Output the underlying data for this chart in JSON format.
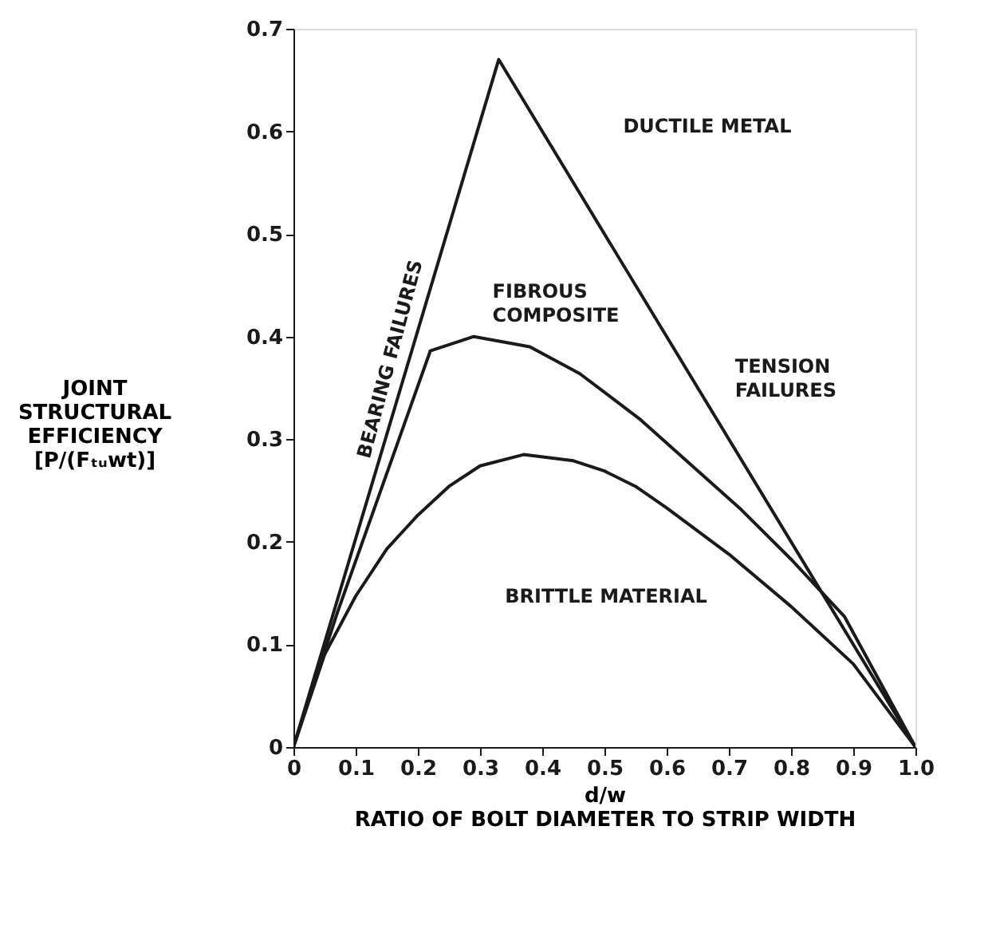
{
  "chart_data": {
    "type": "line",
    "xlabel": "d/w\nRATIO OF BOLT DIAMETER TO STRIP WIDTH",
    "ylabel": "JOINT\nSTRUCTURAL\nEFFICIENCY\n[P/(Fₜᵤwt)]",
    "xlim": [
      0,
      1.0
    ],
    "ylim": [
      0,
      0.7
    ],
    "xticks": [
      0,
      0.1,
      0.2,
      0.3,
      0.4,
      0.5,
      0.6,
      0.7,
      0.8,
      0.9,
      {
        "value": 1.0,
        "label": "1.0"
      }
    ],
    "yticks": [
      0,
      0.1,
      0.2,
      0.3,
      0.4,
      0.5,
      0.6,
      0.7
    ],
    "marker": "none",
    "line_style": "solid",
    "series": [
      {
        "color": "#1a1a1a",
        "x": [
          0,
          0.33,
          1.0
        ],
        "values": [
          0,
          0.67,
          0
        ]
      },
      {
        "color": "#1a1a1a",
        "x": [
          0,
          0.07,
          0.22,
          0.29,
          0.38,
          0.46,
          0.556,
          0.63,
          0.717,
          0.8,
          0.886,
          1.0
        ],
        "values": [
          0,
          0.13,
          0.386,
          0.4,
          0.39,
          0.364,
          0.32,
          0.28,
          0.233,
          0.183,
          0.127,
          0
        ]
      },
      {
        "color": "#1a1a1a",
        "x": [
          0,
          0.05,
          0.1,
          0.15,
          0.2,
          0.25,
          0.3,
          0.37,
          0.45,
          0.5,
          0.55,
          0.6,
          0.7,
          0.8,
          0.9,
          1.0
        ],
        "values": [
          0,
          0.09,
          0.147,
          0.193,
          0.226,
          0.254,
          0.274,
          0.285,
          0.279,
          0.269,
          0.254,
          0.233,
          0.188,
          0.137,
          0.081,
          0
        ]
      }
    ],
    "annotations": [
      "DUCTILE METAL",
      "FIBROUS\nCOMPOSITE",
      "TENSION\nFAILURES",
      "BRITTLE MATERIAL",
      "BEARING FAILURES"
    ]
  }
}
